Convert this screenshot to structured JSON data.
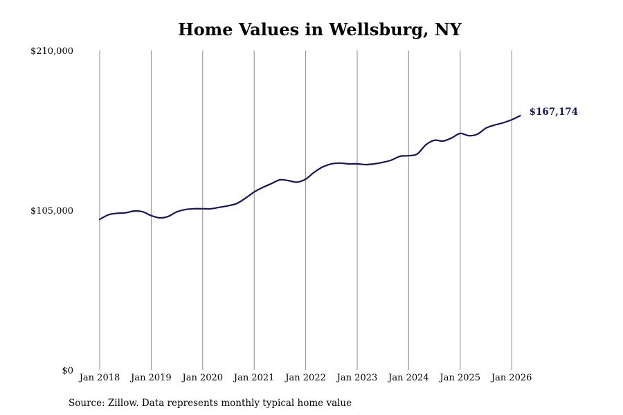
{
  "chart_data": {
    "type": "line",
    "title": "Home Values in Wellsburg, NY",
    "xlabel": "",
    "ylabel": "",
    "source": "Source: Zillow. Data represents monthly typical home value",
    "ylim": [
      0,
      210000
    ],
    "y_ticks": [
      {
        "value": 0,
        "label": "$0"
      },
      {
        "value": 105000,
        "label": "$105,000"
      },
      {
        "value": 210000,
        "label": "$210,000"
      }
    ],
    "x_ticks": [
      {
        "value": "2018-01",
        "label": "Jan 2018"
      },
      {
        "value": "2019-01",
        "label": "Jan 2019"
      },
      {
        "value": "2020-01",
        "label": "Jan 2020"
      },
      {
        "value": "2021-01",
        "label": "Jan 2021"
      },
      {
        "value": "2022-01",
        "label": "Jan 2022"
      },
      {
        "value": "2023-01",
        "label": "Jan 2023"
      },
      {
        "value": "2024-01",
        "label": "Jan 2024"
      },
      {
        "value": "2025-01",
        "label": "Jan 2025"
      },
      {
        "value": "2026-01",
        "label": "Jan 2026"
      }
    ],
    "grid": "vertical",
    "line_color": "#14145a",
    "end_label": "$167,174",
    "series": [
      {
        "points": [
          [
            "2018-01",
            99000
          ],
          [
            "2018-03",
            102000
          ],
          [
            "2018-05",
            103000
          ],
          [
            "2018-07",
            103300
          ],
          [
            "2018-09",
            104500
          ],
          [
            "2018-11",
            104000
          ],
          [
            "2019-01",
            101500
          ],
          [
            "2019-03",
            100000
          ],
          [
            "2019-05",
            101000
          ],
          [
            "2019-07",
            104000
          ],
          [
            "2019-09",
            105500
          ],
          [
            "2019-11",
            106000
          ],
          [
            "2020-01",
            106000
          ],
          [
            "2020-03",
            106000
          ],
          [
            "2020-05",
            107000
          ],
          [
            "2020-07",
            108000
          ],
          [
            "2020-09",
            109500
          ],
          [
            "2020-11",
            113000
          ],
          [
            "2021-01",
            117000
          ],
          [
            "2021-03",
            120000
          ],
          [
            "2021-05",
            122500
          ],
          [
            "2021-07",
            125000
          ],
          [
            "2021-09",
            124500
          ],
          [
            "2021-11",
            123500
          ],
          [
            "2022-01",
            125500
          ],
          [
            "2022-03",
            130000
          ],
          [
            "2022-05",
            133500
          ],
          [
            "2022-07",
            135500
          ],
          [
            "2022-09",
            136000
          ],
          [
            "2022-11",
            135500
          ],
          [
            "2023-01",
            135500
          ],
          [
            "2023-03",
            135000
          ],
          [
            "2023-05",
            135500
          ],
          [
            "2023-07",
            136500
          ],
          [
            "2023-09",
            138000
          ],
          [
            "2023-11",
            140500
          ],
          [
            "2024-01",
            140800
          ],
          [
            "2024-03",
            142000
          ],
          [
            "2024-05",
            148000
          ],
          [
            "2024-07",
            151000
          ],
          [
            "2024-09",
            150500
          ],
          [
            "2024-11",
            152500
          ],
          [
            "2025-01",
            155500
          ],
          [
            "2025-03",
            154000
          ],
          [
            "2025-05",
            155000
          ],
          [
            "2025-07",
            159000
          ],
          [
            "2025-09",
            161000
          ],
          [
            "2025-11",
            162500
          ],
          [
            "2026-01",
            164500
          ],
          [
            "2026-03",
            167174
          ]
        ]
      }
    ]
  }
}
